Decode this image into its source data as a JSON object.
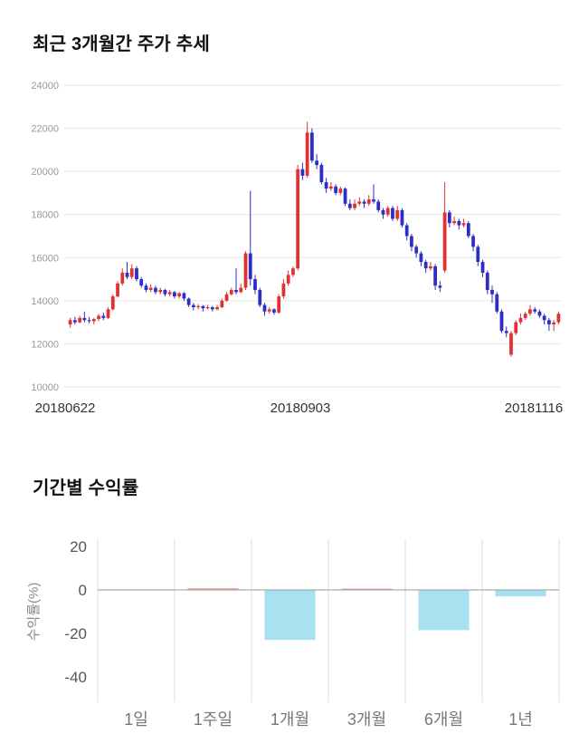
{
  "page": {
    "background": "#ffffff"
  },
  "chart_data": [
    {
      "type": "candlestick",
      "title": "최근 3개월간 주가 추세",
      "x_tick_labels": [
        "20180622",
        "20180903",
        "20181116"
      ],
      "ylim": [
        10000,
        24000
      ],
      "y_ticks": [
        24000,
        22000,
        20000,
        18000,
        16000,
        14000,
        12000,
        10000
      ],
      "up_color": "#e03232",
      "down_color": "#2d2dc8",
      "grid_color": "#e6e6e6",
      "tick_label_color": "#999999",
      "date_label_color": "#333333",
      "candles_ohlc": [
        [
          12900,
          13200,
          12750,
          13100
        ],
        [
          13100,
          13250,
          12900,
          13000
        ],
        [
          13000,
          13300,
          12950,
          13200
        ],
        [
          13200,
          13500,
          13000,
          13100
        ],
        [
          13100,
          13250,
          12950,
          13050
        ],
        [
          13050,
          13200,
          12900,
          13150
        ],
        [
          13150,
          13400,
          13050,
          13300
        ],
        [
          13300,
          13450,
          13100,
          13200
        ],
        [
          13200,
          13700,
          13150,
          13600
        ],
        [
          13600,
          14300,
          13550,
          14200
        ],
        [
          14200,
          14900,
          14150,
          14800
        ],
        [
          14800,
          15500,
          14700,
          15300
        ],
        [
          15300,
          15800,
          15000,
          15100
        ],
        [
          15100,
          15700,
          15000,
          15500
        ],
        [
          15500,
          15600,
          14900,
          15000
        ],
        [
          15000,
          15100,
          14600,
          14700
        ],
        [
          14700,
          14800,
          14400,
          14500
        ],
        [
          14500,
          14750,
          14400,
          14600
        ],
        [
          14600,
          14700,
          14300,
          14400
        ],
        [
          14400,
          14600,
          14300,
          14500
        ],
        [
          14500,
          14550,
          14200,
          14300
        ],
        [
          14300,
          14500,
          14200,
          14400
        ],
        [
          14400,
          14450,
          14100,
          14200
        ],
        [
          14200,
          14400,
          14100,
          14350
        ],
        [
          14350,
          14400,
          14000,
          14100
        ],
        [
          14100,
          14150,
          13700,
          13800
        ],
        [
          13800,
          13900,
          13550,
          13700
        ],
        [
          13700,
          13850,
          13600,
          13750
        ],
        [
          13750,
          13800,
          13500,
          13650
        ],
        [
          13650,
          13800,
          13600,
          13700
        ],
        [
          13700,
          13750,
          13500,
          13600
        ],
        [
          13600,
          13800,
          13550,
          13700
        ],
        [
          13700,
          14100,
          13650,
          14000
        ],
        [
          14000,
          14400,
          13950,
          14300
        ],
        [
          14300,
          14600,
          14250,
          14500
        ],
        [
          14500,
          15500,
          14300,
          14400
        ],
        [
          14400,
          14800,
          14350,
          14600
        ],
        [
          14600,
          16300,
          14500,
          16200
        ],
        [
          16200,
          19100,
          14700,
          15000
        ],
        [
          15000,
          15200,
          14300,
          14500
        ],
        [
          14500,
          14600,
          13700,
          13800
        ],
        [
          13800,
          13900,
          13300,
          13500
        ],
        [
          13500,
          13700,
          13400,
          13600
        ],
        [
          13600,
          13650,
          13350,
          13450
        ],
        [
          13450,
          14300,
          13400,
          14200
        ],
        [
          14200,
          15000,
          14100,
          14800
        ],
        [
          14800,
          15400,
          14700,
          15200
        ],
        [
          15200,
          15600,
          15100,
          15500
        ],
        [
          15500,
          20300,
          15400,
          20100
        ],
        [
          20100,
          20400,
          19600,
          19800
        ],
        [
          19800,
          22300,
          19700,
          21800
        ],
        [
          21800,
          22000,
          20400,
          20500
        ],
        [
          20500,
          20800,
          20100,
          20300
        ],
        [
          20300,
          20400,
          19400,
          19500
        ],
        [
          19500,
          19700,
          19000,
          19200
        ],
        [
          19200,
          19500,
          19100,
          19300
        ],
        [
          19300,
          19400,
          18900,
          19000
        ],
        [
          19000,
          19300,
          18900,
          19200
        ],
        [
          19200,
          19250,
          18400,
          18500
        ],
        [
          18500,
          18700,
          18200,
          18300
        ],
        [
          18300,
          18700,
          18200,
          18500
        ],
        [
          18500,
          18800,
          18400,
          18600
        ],
        [
          18600,
          18700,
          18300,
          18500
        ],
        [
          18500,
          18900,
          18400,
          18700
        ],
        [
          18700,
          19400,
          18500,
          18600
        ],
        [
          18600,
          18700,
          18100,
          18200
        ],
        [
          18200,
          18300,
          17800,
          18000
        ],
        [
          18000,
          18400,
          17900,
          18300
        ],
        [
          18300,
          18400,
          17700,
          17800
        ],
        [
          17800,
          18400,
          17700,
          18200
        ],
        [
          18200,
          18300,
          17400,
          17500
        ],
        [
          17500,
          17600,
          16800,
          17000
        ],
        [
          17000,
          17100,
          16300,
          16500
        ],
        [
          16500,
          16600,
          16000,
          16200
        ],
        [
          16200,
          16300,
          15600,
          15800
        ],
        [
          15800,
          15900,
          15300,
          15500
        ],
        [
          15500,
          15800,
          15400,
          15600
        ],
        [
          15600,
          15700,
          14500,
          14700
        ],
        [
          14700,
          14900,
          14400,
          14600
        ],
        [
          15400,
          19500,
          15300,
          18100
        ],
        [
          18100,
          18200,
          17400,
          17600
        ],
        [
          17600,
          17900,
          17500,
          17700
        ],
        [
          17700,
          17800,
          17300,
          17500
        ],
        [
          17500,
          17800,
          17400,
          17600
        ],
        [
          17600,
          17700,
          16900,
          17000
        ],
        [
          17000,
          17100,
          16300,
          16500
        ],
        [
          16500,
          16600,
          15600,
          15800
        ],
        [
          15800,
          15900,
          15100,
          15300
        ],
        [
          15300,
          15400,
          14300,
          14500
        ],
        [
          14500,
          14700,
          13900,
          14300
        ],
        [
          14300,
          14400,
          13400,
          13500
        ],
        [
          13500,
          13600,
          12500,
          12600
        ],
        [
          12600,
          12800,
          12300,
          12500
        ],
        [
          11500,
          12600,
          11400,
          12500
        ],
        [
          12500,
          13100,
          12400,
          13000
        ],
        [
          13000,
          13400,
          12900,
          13200
        ],
        [
          13200,
          13500,
          13100,
          13400
        ],
        [
          13400,
          13800,
          13300,
          13600
        ],
        [
          13600,
          13700,
          13400,
          13500
        ],
        [
          13500,
          13600,
          13200,
          13300
        ],
        [
          13300,
          13400,
          12900,
          13100
        ],
        [
          13100,
          13200,
          12600,
          12900
        ],
        [
          12900,
          13100,
          12600,
          13000
        ],
        [
          13000,
          13500,
          12900,
          13400
        ]
      ]
    },
    {
      "type": "bar",
      "title": "기간별 수익률",
      "ylabel": "수익률(%)",
      "categories": [
        "1일",
        "1주일",
        "1개월",
        "3개월",
        "6개월",
        "1년"
      ],
      "values": [
        0.0,
        0.8,
        -23.0,
        0.3,
        -18.5,
        -3.0
      ],
      "ylim": [
        -40,
        20
      ],
      "y_ticks": [
        20,
        0,
        -20,
        -40
      ],
      "pos_color": "#f2a59c",
      "neg_color": "#a8e1ef",
      "grid_color": "#dddddd",
      "zero_line_color": "#999999",
      "tick_label_color": "#555555",
      "category_label_color": "#777777",
      "ylabel_color": "#888888"
    }
  ]
}
